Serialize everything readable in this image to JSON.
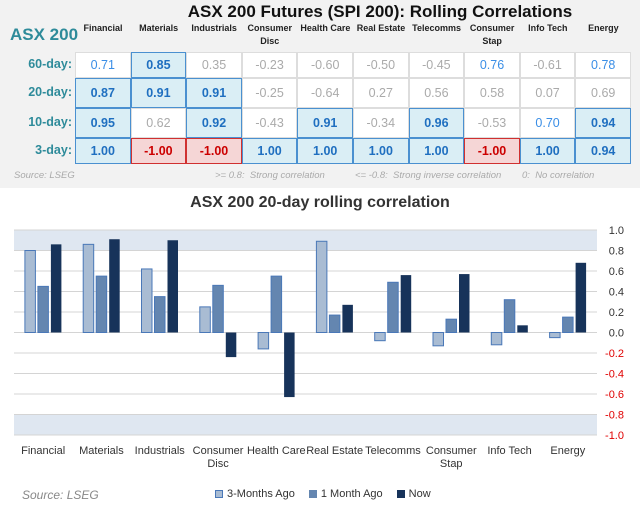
{
  "title": "ASX 200 Futures (SPI 200): Rolling Correlations",
  "index_label": "ASX 200",
  "sectors": [
    "Financial",
    "Materials",
    "Industrials",
    "Consumer Disc",
    "Health Care",
    "Real Estate",
    "Telecomms",
    "Consumer Stap",
    "Info Tech",
    "Energy"
  ],
  "table": {
    "rows": [
      {
        "label": "60-day:",
        "values": [
          "0.71",
          "0.85",
          "0.35",
          "-0.23",
          "-0.60",
          "-0.50",
          "-0.45",
          "0.76",
          "-0.61",
          "0.78"
        ]
      },
      {
        "label": "20-day:",
        "values": [
          "0.87",
          "0.91",
          "0.91",
          "-0.25",
          "-0.64",
          "0.27",
          "0.56",
          "0.58",
          "0.07",
          "0.69"
        ]
      },
      {
        "label": "10-day:",
        "values": [
          "0.95",
          "0.62",
          "0.92",
          "-0.43",
          "0.91",
          "-0.34",
          "0.96",
          "-0.53",
          "0.70",
          "0.94"
        ]
      },
      {
        "label": "3-day:",
        "values": [
          "1.00",
          "-1.00",
          "-1.00",
          "1.00",
          "1.00",
          "1.00",
          "1.00",
          "-1.00",
          "1.00",
          "0.94"
        ]
      }
    ]
  },
  "footer": {
    "source": "Source: LSEG",
    "strong": ">= 0.8:  Strong correlation",
    "inverse": "<= -0.8:  Strong inverse correlation",
    "none": "0:  No correlation"
  },
  "colors": {
    "strong_bg": "#daeef5",
    "strong_text": "#1f6fc0",
    "inverse_bg": "#f5d6d6",
    "inverse_text": "#cc0000",
    "series": [
      "#a9bcd3",
      "#6486b0",
      "#17335a"
    ],
    "band": "#dfe7f1"
  },
  "chart_data": {
    "type": "bar",
    "title": "ASX 200 20-day rolling correlation",
    "categories": [
      "Financial",
      "Materials",
      "Industrials",
      "Consumer Disc",
      "Health Care",
      "Real Estate",
      "Telecomms",
      "Consumer Stap",
      "Info Tech",
      "Energy"
    ],
    "series": [
      {
        "name": "3-Months Ago",
        "values": [
          0.8,
          0.86,
          0.62,
          0.25,
          -0.16,
          0.89,
          -0.08,
          -0.13,
          -0.12,
          -0.05
        ]
      },
      {
        "name": "1 Month Ago",
        "values": [
          0.45,
          0.55,
          0.35,
          0.46,
          0.55,
          0.17,
          0.49,
          0.13,
          0.32,
          0.15
        ]
      },
      {
        "name": "Now",
        "values": [
          0.86,
          0.91,
          0.9,
          -0.24,
          -0.63,
          0.27,
          0.56,
          0.57,
          0.07,
          0.68
        ]
      }
    ],
    "ylim": [
      -1.0,
      1.0
    ],
    "yticks": [
      "1.0",
      "0.8",
      "0.6",
      "0.4",
      "0.2",
      "0.0",
      "-0.2",
      "-0.4",
      "-0.6",
      "-0.8",
      "-1.0"
    ],
    "bands": [
      [
        0.8,
        1.0
      ],
      [
        -1.0,
        -0.8
      ]
    ],
    "grid": true,
    "y_axis": "right",
    "legend": "bottom",
    "source": "Source: LSEG"
  }
}
